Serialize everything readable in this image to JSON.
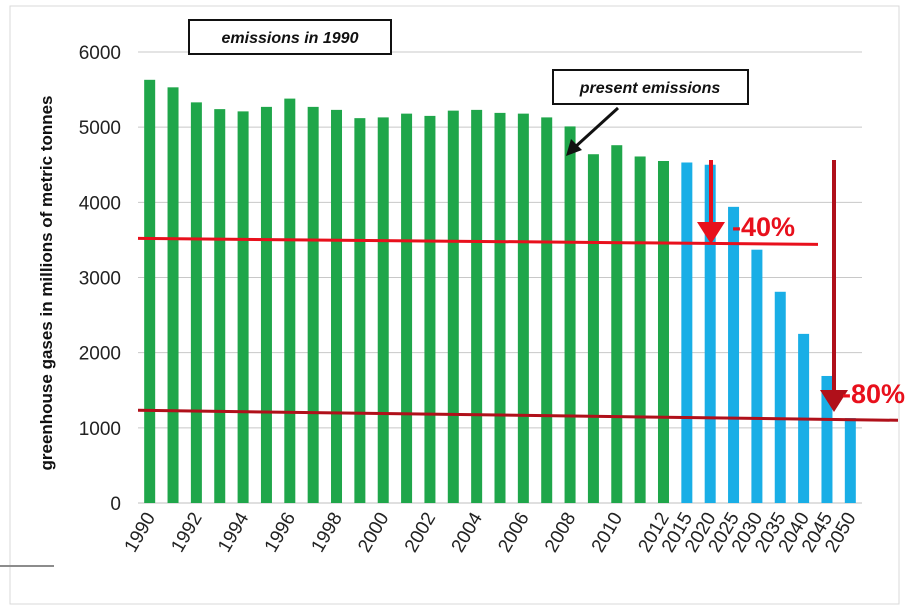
{
  "chart_data": {
    "type": "bar",
    "title": "",
    "xlabel": "",
    "ylabel": "greenhouse gases in millions of metric tonnes",
    "ylim": [
      0,
      6000
    ],
    "yticks": [
      "0",
      "1000",
      "2000",
      "3000",
      "4000",
      "5000",
      "6000"
    ],
    "grid": true,
    "series": [
      {
        "color": "#1fa64a",
        "x": [
          1990,
          1991,
          1992,
          1993,
          1994,
          1995,
          1996,
          1997,
          1998,
          1999,
          2000,
          2001,
          2002,
          2003,
          2004,
          2005,
          2006,
          2007,
          2008,
          2009,
          2010,
          2011,
          2012
        ],
        "values": [
          5630,
          5530,
          5330,
          5240,
          5210,
          5270,
          5380,
          5270,
          5230,
          5120,
          5130,
          5180,
          5150,
          5220,
          5230,
          5190,
          5180,
          5130,
          5010,
          4640,
          4760,
          4610,
          4550
        ]
      },
      {
        "color": "#19aee6",
        "x": [
          2015,
          2020,
          2025,
          2030,
          2035,
          2040,
          2045,
          2050
        ],
        "values": [
          4530,
          4500,
          3940,
          3370,
          2810,
          2250,
          1690,
          1130
        ]
      }
    ],
    "xtick_labels": [
      "1990",
      "1992",
      "1994",
      "1996",
      "1998",
      "2000",
      "2002",
      "2004",
      "2006",
      "2008",
      "2010",
      "2012",
      "2015",
      "2020",
      "2025",
      "2030",
      "2035",
      "2040",
      "2045",
      "2050"
    ],
    "reference_lines": [
      {
        "value": 3480,
        "color": "#e8101c"
      },
      {
        "value": 1180,
        "color": "#b0101a"
      }
    ],
    "annotations": {
      "emissions_1990": "emissions in 1990",
      "present_emissions": "present emissions",
      "minus40": "-40%",
      "minus80": "-80%"
    }
  }
}
